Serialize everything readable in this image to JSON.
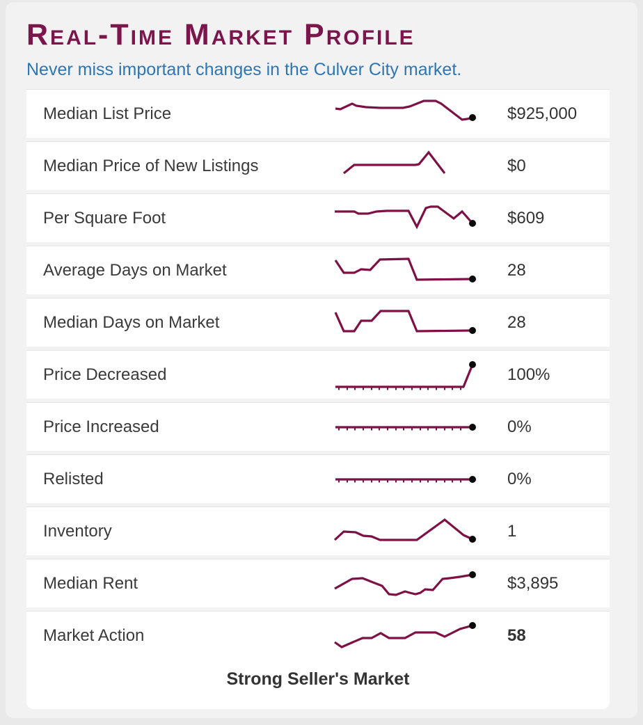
{
  "header": {
    "title": "Real-Time Market Profile",
    "subtitle": "Never miss important changes in the Culver City market."
  },
  "colors": {
    "accent_line": "#7d1044",
    "title_maroon": "#7a164b",
    "subtitle_blue": "#2d76b6",
    "dot_black": "#0a0a0a",
    "label_text": "#3a3a3a",
    "value_text": "#333333"
  },
  "footer": {
    "market_status": "Strong Seller's Market"
  },
  "rows": [
    {
      "label": "Median List Price",
      "value": "$925,000",
      "value_bold": false,
      "sparkline": {
        "dot": true,
        "points": [
          [
            3,
            22
          ],
          [
            10,
            23
          ],
          [
            27,
            15
          ],
          [
            33,
            18
          ],
          [
            47,
            20
          ],
          [
            67,
            21
          ],
          [
            100,
            21
          ],
          [
            110,
            19
          ],
          [
            130,
            11
          ],
          [
            147,
            11
          ],
          [
            155,
            15
          ],
          [
            185,
            38
          ],
          [
            192,
            37
          ],
          [
            200,
            35
          ]
        ]
      }
    },
    {
      "label": "Median Price of New Listings",
      "value": "$0",
      "value_bold": false,
      "sparkline": {
        "dot": false,
        "points": [
          [
            15,
            40
          ],
          [
            30,
            28
          ],
          [
            40,
            28
          ],
          [
            118,
            28
          ],
          [
            123,
            27
          ],
          [
            137,
            10
          ],
          [
            160,
            40
          ]
        ]
      }
    },
    {
      "label": "Per Square Foot",
      "value": "$609",
      "value_bold": false,
      "sparkline": {
        "dot": true,
        "points": [
          [
            2,
            20
          ],
          [
            30,
            20
          ],
          [
            36,
            23
          ],
          [
            50,
            23
          ],
          [
            62,
            20
          ],
          [
            77,
            19
          ],
          [
            108,
            19
          ],
          [
            120,
            42
          ],
          [
            133,
            15
          ],
          [
            140,
            13
          ],
          [
            150,
            13
          ],
          [
            173,
            30
          ],
          [
            185,
            20
          ],
          [
            200,
            37
          ]
        ]
      }
    },
    {
      "label": "Average Days on Market",
      "value": "28",
      "value_bold": false,
      "sparkline": {
        "dot": true,
        "points": [
          [
            3,
            15
          ],
          [
            15,
            33
          ],
          [
            30,
            33
          ],
          [
            40,
            28
          ],
          [
            53,
            29
          ],
          [
            67,
            14
          ],
          [
            108,
            13
          ],
          [
            120,
            43
          ],
          [
            200,
            42
          ]
        ]
      }
    },
    {
      "label": "Median Days on Market",
      "value": "28",
      "value_bold": false,
      "sparkline": {
        "dot": true,
        "points": [
          [
            3,
            15
          ],
          [
            15,
            42
          ],
          [
            30,
            42
          ],
          [
            40,
            27
          ],
          [
            55,
            27
          ],
          [
            68,
            13
          ],
          [
            108,
            13
          ],
          [
            120,
            42
          ],
          [
            200,
            41
          ]
        ]
      }
    },
    {
      "label": "Price Decreased",
      "value": "100%",
      "value_bold": false,
      "sparkline": {
        "dot": true,
        "tick_y": 48.5,
        "ticks": [
          8,
          20,
          31,
          43,
          55,
          66,
          78,
          90,
          101,
          113,
          125,
          136,
          148,
          160,
          171,
          183
        ],
        "points": [
          [
            3,
            47
          ],
          [
            187,
            47
          ],
          [
            200,
            15
          ]
        ]
      }
    },
    {
      "label": "Price Increased",
      "value": "0%",
      "value_bold": false,
      "sparkline": {
        "dot": true,
        "tick_y": 31.5,
        "ticks": [
          8,
          20,
          31,
          43,
          55,
          66,
          78,
          90,
          101,
          113,
          125,
          136,
          148,
          160,
          171,
          183
        ],
        "points": [
          [
            3,
            30
          ],
          [
            200,
            30
          ]
        ]
      }
    },
    {
      "label": "Relisted",
      "value": "0%",
      "value_bold": false,
      "sparkline": {
        "dot": true,
        "tick_y": 31.5,
        "ticks": [
          8,
          20,
          31,
          43,
          55,
          66,
          78,
          90,
          101,
          113,
          125,
          136,
          148,
          160,
          171,
          183
        ],
        "points": [
          [
            3,
            30
          ],
          [
            200,
            30
          ]
        ]
      }
    },
    {
      "label": "Inventory",
      "value": "1",
      "value_bold": false,
      "sparkline": {
        "dot": true,
        "points": [
          [
            2,
            42
          ],
          [
            15,
            30
          ],
          [
            32,
            31
          ],
          [
            43,
            36
          ],
          [
            55,
            37
          ],
          [
            67,
            42
          ],
          [
            120,
            42
          ],
          [
            160,
            13
          ],
          [
            187,
            35
          ],
          [
            200,
            41
          ]
        ]
      }
    },
    {
      "label": "Median Rent",
      "value": "$3,895",
      "value_bold": false,
      "sparkline": {
        "dot": true,
        "points": [
          [
            2,
            37
          ],
          [
            27,
            23
          ],
          [
            42,
            22
          ],
          [
            57,
            28
          ],
          [
            70,
            33
          ],
          [
            80,
            45
          ],
          [
            90,
            46
          ],
          [
            103,
            41
          ],
          [
            110,
            43
          ],
          [
            118,
            45
          ],
          [
            125,
            43
          ],
          [
            132,
            38
          ],
          [
            143,
            39
          ],
          [
            157,
            23
          ],
          [
            167,
            22
          ],
          [
            182,
            20
          ],
          [
            200,
            17
          ]
        ]
      }
    },
    {
      "label": "Market Action",
      "value": "58",
      "value_bold": true,
      "sparkline": {
        "dot": true,
        "points": [
          [
            2,
            39
          ],
          [
            12,
            46
          ],
          [
            28,
            39
          ],
          [
            42,
            33
          ],
          [
            55,
            33
          ],
          [
            68,
            26
          ],
          [
            80,
            33
          ],
          [
            103,
            33
          ],
          [
            118,
            25
          ],
          [
            147,
            25
          ],
          [
            160,
            31
          ],
          [
            182,
            20
          ],
          [
            200,
            15
          ]
        ]
      }
    }
  ]
}
